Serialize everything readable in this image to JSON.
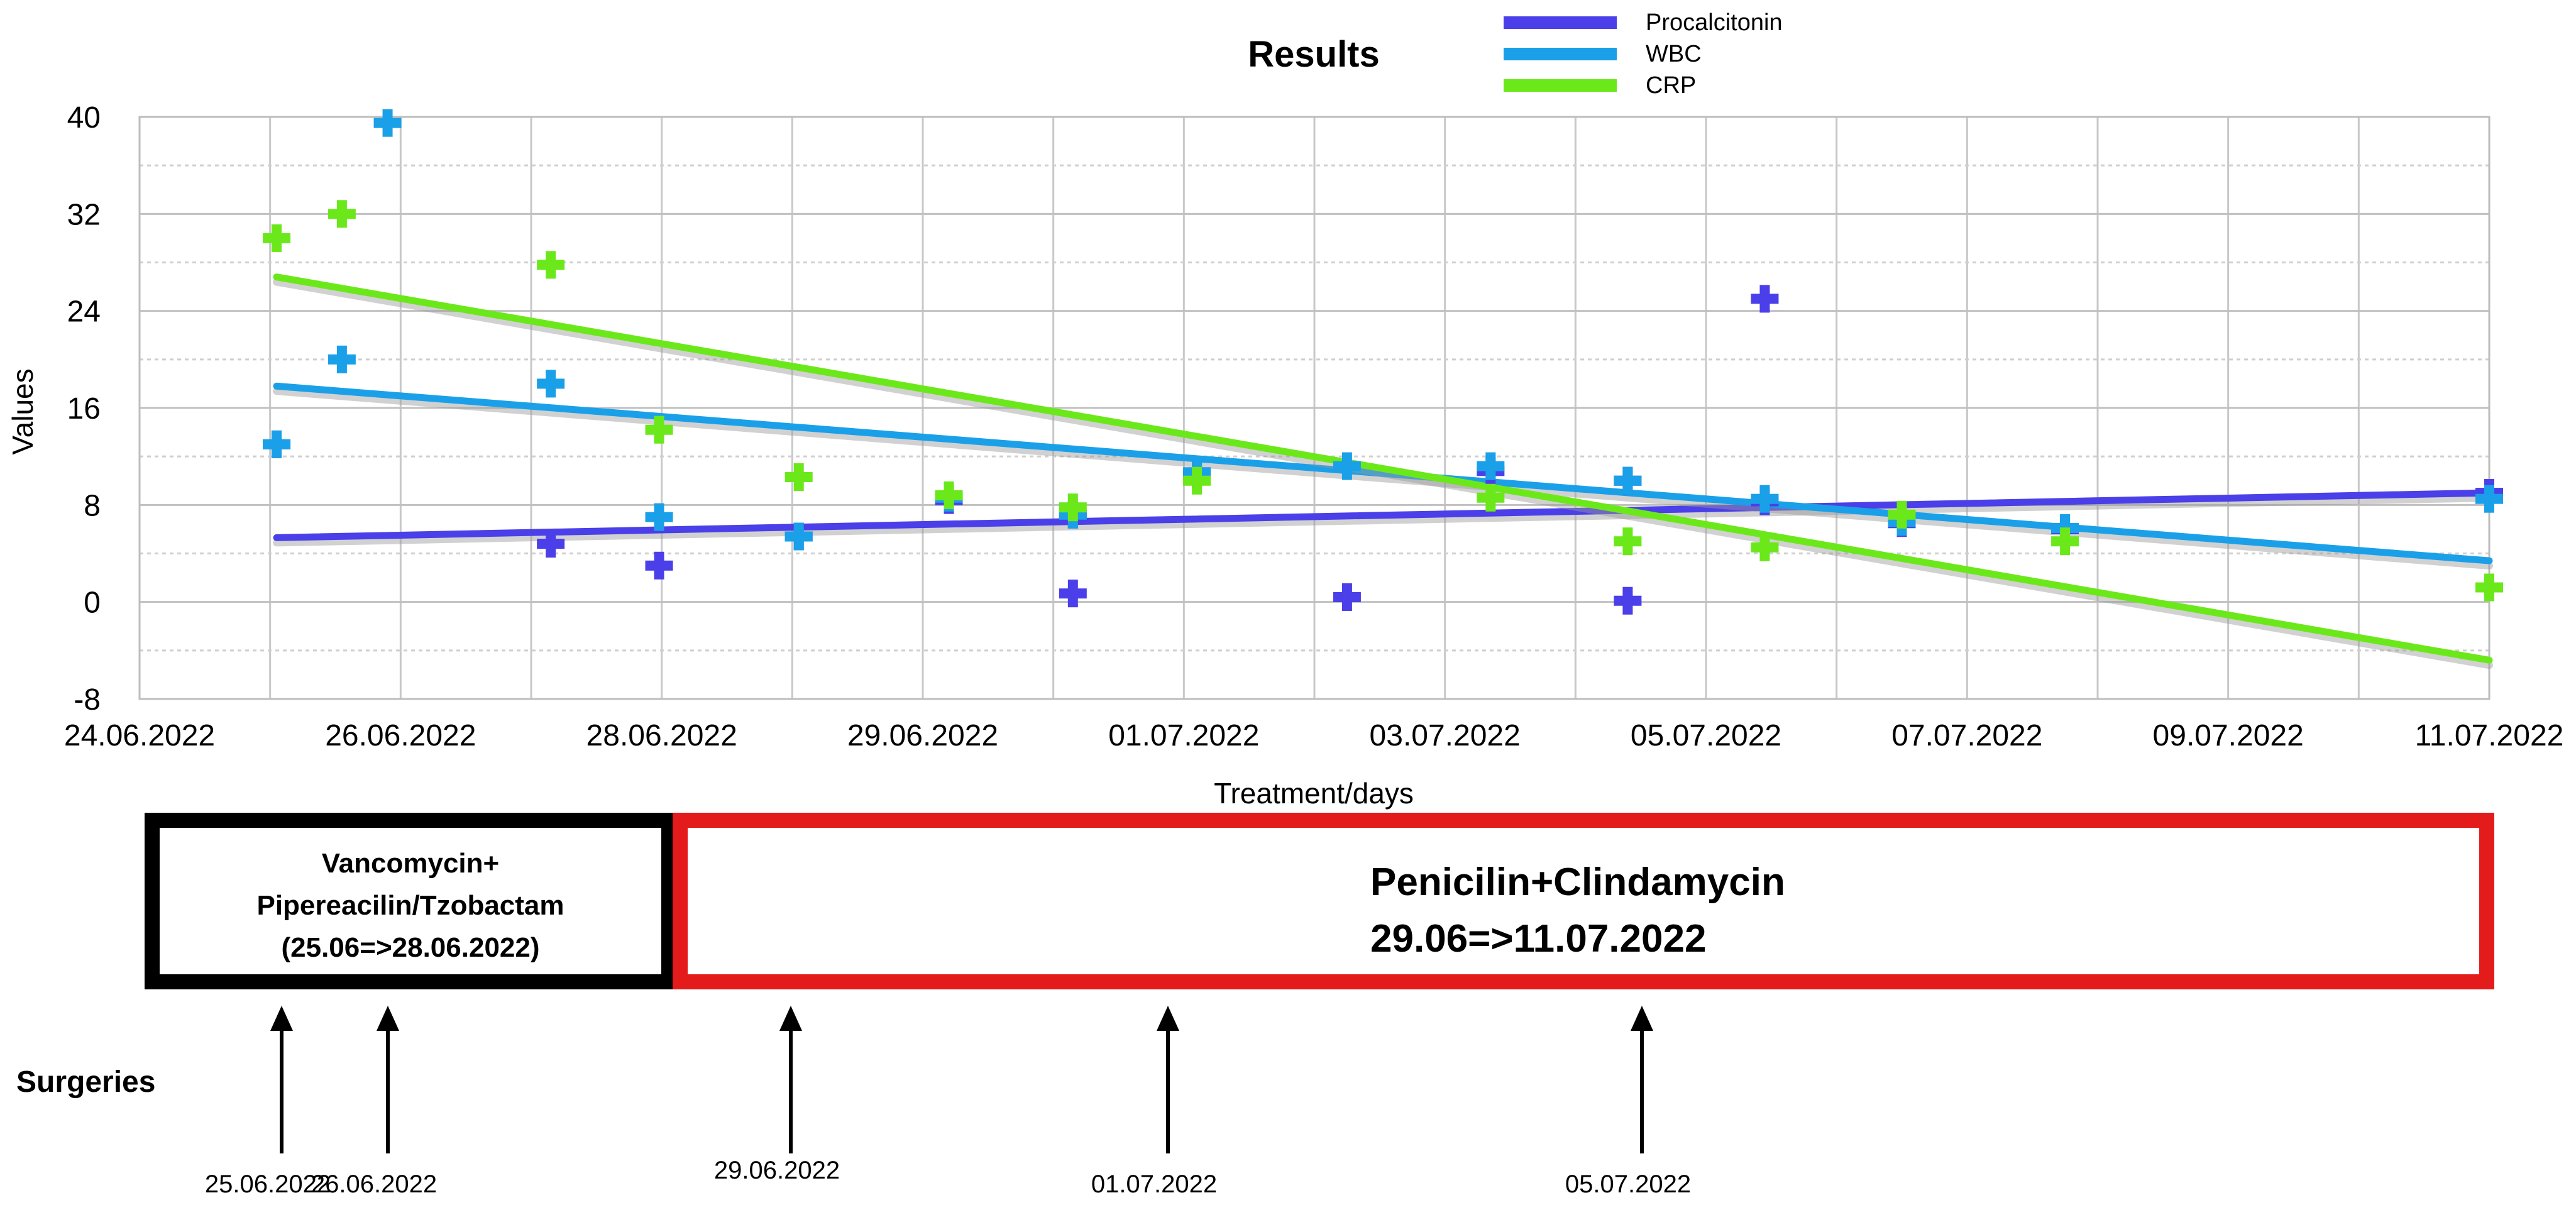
{
  "chart_data": {
    "type": "scatter",
    "title": "Results",
    "xlabel": "Treatment/days",
    "ylabel": "Values",
    "ylim": [
      -8,
      40
    ],
    "yticks": [
      -8,
      0,
      8,
      16,
      24,
      32,
      40
    ],
    "xlim": [
      0,
      17
    ],
    "xticks": [
      {
        "x": 0,
        "label": "24.06.2022"
      },
      {
        "x": 2,
        "label": "26.06.2022"
      },
      {
        "x": 4,
        "label": "28.06.2022"
      },
      {
        "x": 6,
        "label": "29.06.2022"
      },
      {
        "x": 8,
        "label": "01.07.2022"
      },
      {
        "x": 10,
        "label": "03.07.2022"
      },
      {
        "x": 12,
        "label": "05.07.2022"
      },
      {
        "x": 14,
        "label": "07.07.2022"
      },
      {
        "x": 16,
        "label": "09.07.2022"
      },
      {
        "x": 18,
        "label": "11.07.2022"
      }
    ],
    "grid": true,
    "legend_position": "top-right",
    "series": [
      {
        "name": "Procalcitonin",
        "color": "#4a3fe8",
        "points": [
          [
            1.05,
            13
          ],
          [
            3.15,
            4.8
          ],
          [
            3.98,
            3.0
          ],
          [
            5.05,
            5.4
          ],
          [
            6.2,
            8.4
          ],
          [
            7.15,
            0.7
          ],
          [
            7.15,
            7.2
          ],
          [
            8.1,
            10.5
          ],
          [
            9.25,
            0.4
          ],
          [
            10.35,
            10.8
          ],
          [
            11.4,
            0.1
          ],
          [
            11.4,
            10.0
          ],
          [
            12.45,
            25
          ],
          [
            12.45,
            8.3
          ],
          [
            13.5,
            6.5
          ],
          [
            14.75,
            6.0
          ],
          [
            18.0,
            9.0
          ]
        ],
        "trend": [
          [
            1.05,
            5.3
          ],
          [
            18.0,
            9.0
          ]
        ]
      },
      {
        "name": "WBC",
        "color": "#1aa0e8",
        "points": [
          [
            1.05,
            13
          ],
          [
            1.55,
            20
          ],
          [
            1.9,
            39.5
          ],
          [
            3.15,
            18
          ],
          [
            3.98,
            7
          ],
          [
            5.05,
            5.4
          ],
          [
            6.2,
            8.6
          ],
          [
            7.15,
            7.2
          ],
          [
            8.1,
            10.7
          ],
          [
            9.25,
            11.2
          ],
          [
            10.35,
            11.2
          ],
          [
            11.4,
            10.0
          ],
          [
            12.45,
            8.5
          ],
          [
            13.5,
            6.6
          ],
          [
            14.75,
            6.1
          ],
          [
            18.0,
            8.5
          ]
        ],
        "trend": [
          [
            1.05,
            17.8
          ],
          [
            18.0,
            3.4
          ]
        ]
      },
      {
        "name": "CRP",
        "color": "#6be81a",
        "points": [
          [
            1.05,
            30
          ],
          [
            1.55,
            32
          ],
          [
            3.15,
            27.8
          ],
          [
            3.98,
            14.2
          ],
          [
            5.05,
            10.3
          ],
          [
            6.2,
            8.8
          ],
          [
            7.15,
            7.8
          ],
          [
            8.1,
            10
          ],
          [
            10.35,
            8.6
          ],
          [
            11.4,
            5.0
          ],
          [
            12.45,
            4.5
          ],
          [
            13.5,
            7.2
          ],
          [
            14.75,
            5.0
          ],
          [
            18.0,
            1.2
          ]
        ],
        "trend": [
          [
            1.05,
            26.8
          ],
          [
            18.0,
            -4.8
          ]
        ]
      }
    ]
  },
  "treatments": [
    {
      "lines": [
        "Vancomycin+",
        "Pipereacilin/Tzobactam",
        "(25.06=>28.06.2022)"
      ],
      "color": "#000000"
    },
    {
      "lines": [
        "Penicilin+Clindamycin",
        "29.06=>11.07.2022"
      ],
      "color": "#e41b1b"
    }
  ],
  "surgeries": {
    "label": "Surgeries",
    "dates": [
      "25.06.2022",
      "26.06.2022",
      "29.06.2022",
      "01.07.2022",
      "05.07.2022"
    ]
  }
}
